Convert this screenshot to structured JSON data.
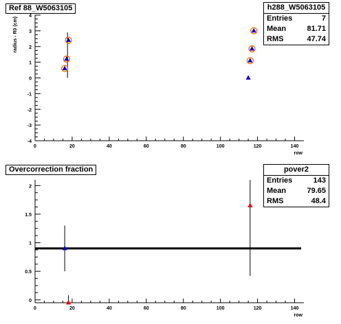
{
  "pad1": {
    "title": "Ref 88_W5063105",
    "stats": {
      "name": "h288_W5063105",
      "rows": [
        {
          "label": "Entries",
          "value": "7"
        },
        {
          "label": "Mean",
          "value": "81.71"
        },
        {
          "label": "RMS",
          "value": "47.74"
        }
      ]
    }
  },
  "pad2": {
    "title": "Overcorrection fraction",
    "stats": {
      "name": "pover2",
      "rows": [
        {
          "label": "Entries",
          "value": "143"
        },
        {
          "label": "Mean",
          "value": "79.65"
        },
        {
          "label": "RMS",
          "value": "48.4"
        }
      ]
    }
  },
  "colors": {
    "blue": "#0000cc",
    "red": "#ee0000",
    "orange": "#ff6600",
    "axis": "#000000"
  },
  "chart_data": [
    {
      "type": "scatter",
      "title": "Ref 88_W5063105",
      "xlabel": "row",
      "ylabel": "radius - R0 (cm)",
      "xlim": [
        0,
        145
      ],
      "ylim": [
        -4,
        4
      ],
      "xticks": [
        0,
        20,
        40,
        60,
        80,
        100,
        120,
        140
      ],
      "yticks": [
        -4,
        -3,
        -2,
        -1,
        0,
        1,
        2,
        3,
        4
      ],
      "grid": false,
      "series": [
        {
          "marker": "triangle",
          "color": "blue",
          "points": [
            [
              16,
              0.6
            ],
            [
              17,
              1.2
            ],
            [
              18,
              2.4
            ],
            [
              115,
              0.0
            ],
            [
              116,
              1.1
            ],
            [
              117,
              1.85
            ],
            [
              118,
              3.0
            ]
          ]
        },
        {
          "marker": "open-circle",
          "color": "orange",
          "points": [
            [
              16,
              0.6
            ],
            [
              17,
              1.2
            ],
            [
              18,
              2.4
            ],
            [
              116,
              1.1
            ],
            [
              117,
              1.85
            ],
            [
              118,
              3.0
            ]
          ]
        }
      ],
      "error_bars": [
        {
          "x": 17.5,
          "y_low": 0.0,
          "y_high": 2.9
        }
      ]
    },
    {
      "type": "scatter",
      "title": "Overcorrection fraction",
      "xlabel": "row",
      "ylabel": "",
      "xlim": [
        0,
        145
      ],
      "ylim": [
        -0.05,
        2.1
      ],
      "xticks": [
        0,
        20,
        40,
        60,
        80,
        100,
        120,
        140
      ],
      "yticks": [
        0,
        0.5,
        1,
        1.5,
        2
      ],
      "ytick_labels": [
        "0",
        "0.5",
        "1",
        "1.5",
        "2"
      ],
      "grid": false,
      "reference_line": {
        "y": 0.9
      },
      "series": [
        {
          "marker": "triangle",
          "color": "blue",
          "points": [
            [
              16,
              0.9
            ]
          ]
        },
        {
          "marker": "triangle",
          "color": "red",
          "points": [
            [
              18,
              -0.05
            ],
            [
              116,
              1.65
            ]
          ]
        }
      ],
      "error_bars": [
        {
          "x": 16,
          "y_low": 0.5,
          "y_high": 1.3
        },
        {
          "x": 18,
          "y_low": -0.05,
          "y_high": 0.08
        },
        {
          "x": 116,
          "y_low": 0.42,
          "y_high": 2.1
        }
      ]
    }
  ]
}
